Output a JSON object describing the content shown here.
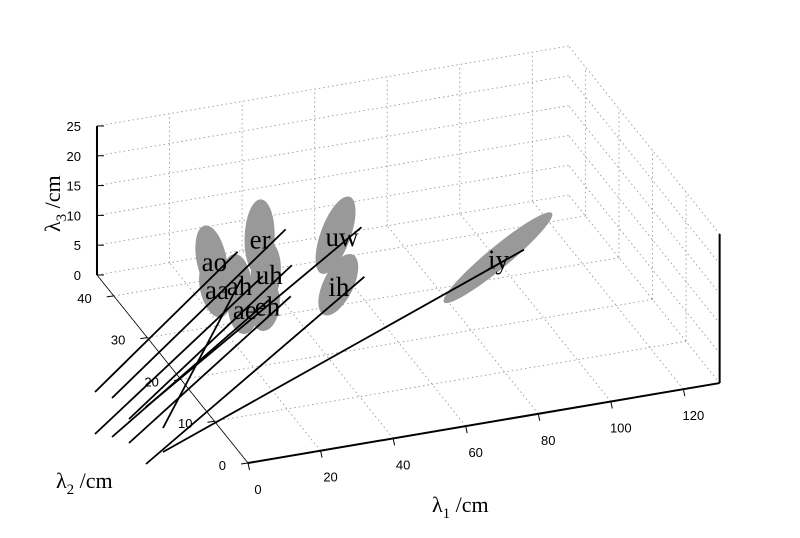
{
  "chart_data": {
    "type": "scatter",
    "subtype": "3d-ellipsoids-with-regression-lines",
    "title": "",
    "xlabel": "λ1 /cm",
    "ylabel": "λ2 /cm",
    "zlabel": "λ3 /cm",
    "axis_labels": {
      "x": {
        "symbol": "λ",
        "sub": "1",
        "unit": " /cm"
      },
      "y": {
        "symbol": "λ",
        "sub": "2",
        "unit": " /cm"
      },
      "z": {
        "symbol": "λ",
        "sub": "3",
        "unit": " /cm"
      }
    },
    "xlim": [
      0,
      130
    ],
    "ylim": [
      0,
      45
    ],
    "zlim": [
      0,
      25
    ],
    "xticks": [
      "0",
      "20",
      "40",
      "60",
      "80",
      "100",
      "120"
    ],
    "yticks": [
      "0",
      "10",
      "20",
      "30",
      "40"
    ],
    "zticks": [
      "0",
      "5",
      "10",
      "15",
      "20",
      "25"
    ],
    "grid": true,
    "box": true,
    "vowels": [
      {
        "label": "ao",
        "x": 12,
        "y": 25,
        "z": 15
      },
      {
        "label": "er",
        "x": 28,
        "y": 28,
        "z": 15
      },
      {
        "label": "uh",
        "x": 26,
        "y": 24,
        "z": 12
      },
      {
        "label": "uw",
        "x": 48,
        "y": 27,
        "z": 14
      },
      {
        "label": "aa",
        "x": 12,
        "y": 24,
        "z": 11
      },
      {
        "label": "ah",
        "x": 18,
        "y": 24,
        "z": 11
      },
      {
        "label": "ae",
        "x": 16,
        "y": 20,
        "z": 10
      },
      {
        "label": "eh",
        "x": 22,
        "y": 20,
        "z": 10
      },
      {
        "label": "ih",
        "x": 46,
        "y": 24,
        "z": 8
      },
      {
        "label": "iy",
        "x": 90,
        "y": 24,
        "z": 8
      }
    ]
  }
}
